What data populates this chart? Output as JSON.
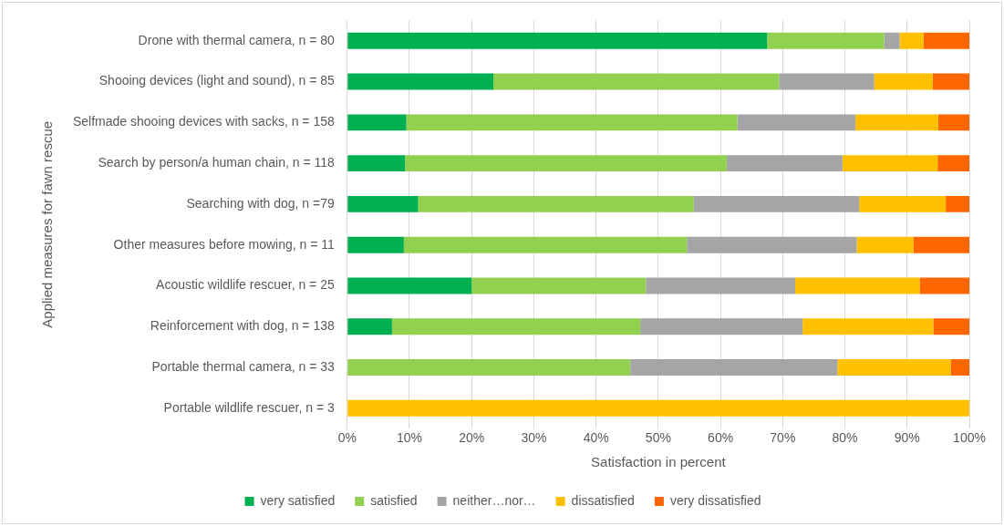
{
  "chart_data": {
    "type": "bar",
    "orientation": "horizontal",
    "stacked": true,
    "xlabel": "Satisfaction in percent",
    "ylabel": "Applied measures for fawn rescue",
    "categories": [
      "Drone with thermal camera, n = 80",
      "Shooing devices (light and sound), n = 85",
      "Selfmade shooing devices with sacks, n = 158",
      "Search by person/a human chain, n = 118",
      "Searching with dog, n =79",
      "Other measures before mowing, n = 11",
      "Acoustic wildlife rescuer, n = 25",
      "Reinforcement with dog, n = 138",
      "Portable thermal camera, n = 33",
      "Portable wildlife rescuer, n = 3"
    ],
    "series": [
      {
        "name": "very satisfied",
        "color": "#00b050",
        "values": [
          67.5,
          23.5,
          9.5,
          9.3,
          11.4,
          9.1,
          20,
          7.2,
          0,
          0
        ]
      },
      {
        "name": "satisfied",
        "color": "#92d050",
        "values": [
          18.8,
          45.9,
          53.2,
          51.7,
          44.3,
          45.5,
          28,
          39.9,
          45.5,
          0
        ]
      },
      {
        "name": "neither…nor…",
        "color": "#a5a5a5",
        "values": [
          2.5,
          15.3,
          19.0,
          18.6,
          26.6,
          27.3,
          24,
          26.1,
          33.3,
          0
        ]
      },
      {
        "name": "dissatisfied",
        "color": "#ffc000",
        "values": [
          3.8,
          9.4,
          13.3,
          15.3,
          13.9,
          9.1,
          20,
          21.0,
          18.2,
          100
        ]
      },
      {
        "name": "very dissatisfied",
        "color": "#ff6600",
        "values": [
          7.5,
          5.9,
          5.1,
          5.1,
          3.8,
          9.1,
          8,
          5.8,
          3.0,
          0
        ]
      }
    ],
    "xlim": [
      0,
      100
    ],
    "xticks": [
      {
        "value": 0,
        "label": "0%"
      },
      {
        "value": 10,
        "label": "10%"
      },
      {
        "value": 20,
        "label": "20%"
      },
      {
        "value": 30,
        "label": "30%"
      },
      {
        "value": 40,
        "label": "40%"
      },
      {
        "value": 50,
        "label": "50%"
      },
      {
        "value": 60,
        "label": "60%"
      },
      {
        "value": 70,
        "label": "70%"
      },
      {
        "value": 80,
        "label": "80%"
      },
      {
        "value": 90,
        "label": "90%"
      },
      {
        "value": 100,
        "label": "100%"
      }
    ],
    "grid": "x",
    "legend": "bottom"
  }
}
